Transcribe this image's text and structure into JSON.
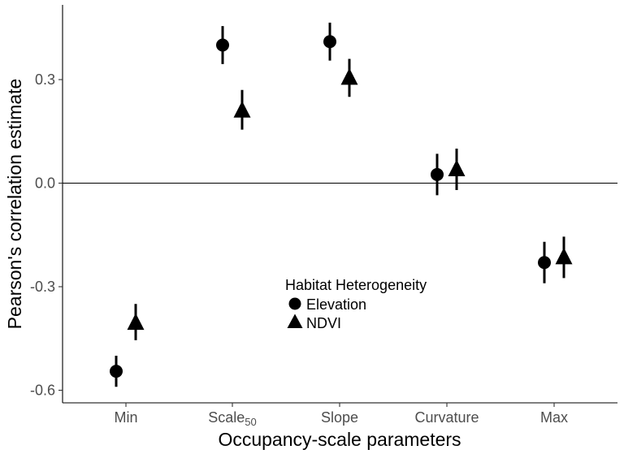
{
  "chart_data": {
    "type": "scatter",
    "xlabel": "Occupancy-scale parameters",
    "ylabel": "Pearson's correlation estimate",
    "categories": [
      {
        "label": "Min",
        "sub": ""
      },
      {
        "label": "Scale",
        "sub": "50"
      },
      {
        "label": "Slope",
        "sub": ""
      },
      {
        "label": "Curvature",
        "sub": ""
      },
      {
        "label": "Max",
        "sub": ""
      }
    ],
    "yticks": [
      "0.3",
      "0.0",
      "-0.3",
      "-0.6"
    ],
    "ylim": [
      -0.63,
      0.52
    ],
    "reference_line_y": 0,
    "grid": false,
    "legend": {
      "title": "Habitat Heterogeneity",
      "position": "center-bottom",
      "entries": [
        "Elevation",
        "NDVI"
      ]
    },
    "series": [
      {
        "name": "Elevation",
        "marker": "circle",
        "values": [
          -0.545,
          0.4,
          0.41,
          0.025,
          -0.23
        ],
        "lower": [
          -0.59,
          0.345,
          0.355,
          -0.035,
          -0.29
        ],
        "upper": [
          -0.5,
          0.455,
          0.465,
          0.085,
          -0.17
        ]
      },
      {
        "name": "NDVI",
        "marker": "triangle",
        "values": [
          -0.405,
          0.21,
          0.305,
          0.04,
          -0.215
        ],
        "lower": [
          -0.455,
          0.155,
          0.25,
          -0.02,
          -0.275
        ],
        "upper": [
          -0.35,
          0.27,
          0.36,
          0.1,
          -0.155
        ]
      }
    ]
  }
}
